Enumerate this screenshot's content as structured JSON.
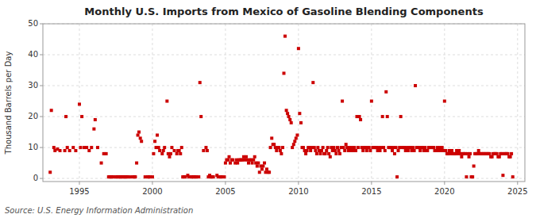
{
  "chart_data": {
    "type": "scatter",
    "title": "Monthly U.S. Imports from Mexico of Gasoline Blending Components",
    "y_label": "Thousand Barrels per Day",
    "annotations": [
      "Source: U.S. Energy Information Administration"
    ],
    "color": "#CC0000",
    "grid": true,
    "xlim": [
      1992.5,
      2025.5
    ],
    "ylim": [
      -1,
      50
    ],
    "xticks": [
      1995,
      2000,
      2005,
      2010,
      2015,
      2020,
      2025
    ],
    "yticks": [
      0,
      10,
      20,
      30,
      40,
      50
    ],
    "x": [
      1993,
      1993.08,
      1993.25,
      1993.33,
      1993.5,
      1993.67,
      1994,
      1994.08,
      1994.17,
      1994.33,
      1994.58,
      1994.75,
      1995,
      1995.08,
      1995.17,
      1995.33,
      1995.5,
      1995.67,
      1995.83,
      1996,
      1996.08,
      1996.25,
      1996.5,
      1996.67,
      1996.83,
      1997,
      1997.08,
      1997.17,
      1997.25,
      1997.33,
      1997.5,
      1997.58,
      1997.67,
      1997.75,
      1997.83,
      1997.92,
      1998,
      1998.08,
      1998.17,
      1998.25,
      1998.33,
      1998.5,
      1998.67,
      1998.75,
      1998.83,
      1998.92,
      1999,
      1999.08,
      1999.17,
      1999.25,
      1999.5,
      1999.67,
      1999.75,
      1999.83,
      2000,
      2000.08,
      2000.17,
      2000.25,
      2000.33,
      2000.42,
      2000.5,
      2000.67,
      2000.75,
      2000.83,
      2001,
      2001.08,
      2001.17,
      2001.25,
      2001.33,
      2001.5,
      2001.67,
      2001.75,
      2001.83,
      2001.92,
      2002,
      2002.08,
      2002.17,
      2002.25,
      2002.42,
      2002.5,
      2002.67,
      2002.75,
      2002.83,
      2002.92,
      2003,
      2003.17,
      2003.25,
      2003.33,
      2003.5,
      2003.67,
      2003.75,
      2003.83,
      2003.92,
      2004,
      2004.08,
      2004.17,
      2004.42,
      2004.5,
      2004.67,
      2004.75,
      2004.92,
      2005,
      2005.08,
      2005.17,
      2005.25,
      2005.33,
      2005.42,
      2005.5,
      2005.67,
      2005.75,
      2005.83,
      2005.92,
      2006,
      2006.08,
      2006.17,
      2006.25,
      2006.33,
      2006.42,
      2006.5,
      2006.58,
      2006.67,
      2006.75,
      2006.83,
      2006.92,
      2007,
      2007.08,
      2007.17,
      2007.25,
      2007.33,
      2007.42,
      2007.5,
      2007.58,
      2007.67,
      2007.75,
      2007.83,
      2007.92,
      2008,
      2008.08,
      2008.17,
      2008.25,
      2008.33,
      2008.42,
      2008.5,
      2008.58,
      2008.67,
      2008.75,
      2008.83,
      2008.92,
      2009,
      2009.08,
      2009.17,
      2009.25,
      2009.33,
      2009.42,
      2009.5,
      2009.58,
      2009.67,
      2009.75,
      2009.83,
      2009.92,
      2010,
      2010.08,
      2010.17,
      2010.25,
      2010.33,
      2010.42,
      2010.5,
      2010.58,
      2010.67,
      2010.75,
      2010.83,
      2010.92,
      2011,
      2011.08,
      2011.17,
      2011.25,
      2011.33,
      2011.42,
      2011.5,
      2011.58,
      2011.67,
      2011.75,
      2011.83,
      2011.92,
      2012,
      2012.08,
      2012.17,
      2012.25,
      2012.33,
      2012.42,
      2012.5,
      2012.58,
      2012.67,
      2012.75,
      2012.83,
      2012.92,
      2013,
      2013.08,
      2013.17,
      2013.25,
      2013.33,
      2013.42,
      2013.5,
      2013.58,
      2013.67,
      2013.75,
      2013.83,
      2013.92,
      2014,
      2014.08,
      2014.17,
      2014.25,
      2014.33,
      2014.42,
      2014.5,
      2014.58,
      2014.67,
      2014.75,
      2014.83,
      2014.92,
      2015,
      2015.08,
      2015.17,
      2015.25,
      2015.33,
      2015.42,
      2015.5,
      2015.58,
      2015.67,
      2015.75,
      2015.83,
      2015.92,
      2016,
      2016.08,
      2016.17,
      2016.25,
      2016.33,
      2016.42,
      2016.5,
      2016.58,
      2016.67,
      2016.75,
      2016.83,
      2016.92,
      2017,
      2017.08,
      2017.17,
      2017.25,
      2017.33,
      2017.42,
      2017.5,
      2017.58,
      2017.67,
      2017.75,
      2017.83,
      2017.92,
      2018,
      2018.08,
      2018.17,
      2018.25,
      2018.33,
      2018.42,
      2018.5,
      2018.58,
      2018.67,
      2018.75,
      2018.83,
      2018.92,
      2019,
      2019.08,
      2019.17,
      2019.25,
      2019.33,
      2019.42,
      2019.5,
      2019.58,
      2019.67,
      2019.75,
      2019.83,
      2019.92,
      2020,
      2020.08,
      2020.17,
      2020.25,
      2020.33,
      2020.42,
      2020.5,
      2020.58,
      2020.67,
      2020.75,
      2020.83,
      2020.92,
      2021,
      2021.08,
      2021.17,
      2021.25,
      2021.33,
      2021.42,
      2021.5,
      2021.58,
      2021.67,
      2021.75,
      2021.83,
      2021.92,
      2022,
      2022.08,
      2022.17,
      2022.25,
      2022.33,
      2022.42,
      2022.5,
      2022.58,
      2022.67,
      2022.75,
      2022.83,
      2022.92,
      2023,
      2023.08,
      2023.17,
      2023.25,
      2023.33,
      2023.42,
      2023.5,
      2023.58,
      2023.67,
      2023.75,
      2023.83,
      2023.92,
      2024,
      2024.08,
      2024.17,
      2024.25,
      2024.33,
      2024.42,
      2024.5,
      2024.58,
      2024.67
    ],
    "values": [
      2,
      22,
      10,
      9,
      9.5,
      9,
      9,
      20,
      10,
      9,
      10,
      9,
      24,
      10,
      20,
      10,
      10,
      9,
      10,
      16,
      19,
      10,
      5,
      8,
      8,
      0.5,
      0.5,
      0.5,
      0.5,
      0.5,
      0.5,
      0.5,
      0.5,
      0.5,
      0.5,
      0.5,
      0.5,
      0.5,
      0.5,
      0.5,
      0.5,
      0.5,
      0.5,
      0.5,
      0.5,
      5,
      14,
      15,
      13,
      12,
      0.5,
      0.5,
      0.5,
      0.5,
      0.5,
      8,
      12,
      10,
      14,
      10,
      9,
      8,
      9,
      10,
      25,
      8,
      7,
      8,
      10,
      9,
      8,
      9,
      9,
      8,
      10,
      0.5,
      0.5,
      0.5,
      1,
      0.5,
      0.5,
      0.5,
      0.5,
      0.5,
      0.5,
      0.5,
      31,
      20,
      9,
      10,
      9,
      0.5,
      1,
      0.5,
      0.5,
      0.5,
      1,
      0.5,
      0.5,
      0.5,
      0.5,
      5,
      6,
      6,
      7,
      5,
      6,
      6,
      5,
      6,
      5,
      6,
      6,
      6,
      6,
      7,
      6,
      7,
      6,
      5,
      6,
      6,
      5,
      6,
      7,
      5,
      4,
      5,
      2,
      4,
      3,
      4,
      5,
      2,
      3,
      2,
      2,
      10,
      13,
      11,
      11,
      10,
      9,
      10,
      10,
      9,
      8,
      10,
      34,
      46,
      22,
      21,
      20,
      19,
      18,
      10,
      11,
      12,
      13,
      14,
      42,
      21,
      18,
      10,
      10,
      9,
      8,
      9,
      10,
      10,
      9,
      10,
      31,
      10,
      9,
      8,
      10,
      9,
      8,
      9,
      10,
      8,
      8,
      9,
      10,
      8,
      7,
      10,
      9,
      10,
      9,
      8,
      10,
      9,
      8,
      10,
      25,
      10,
      9,
      11,
      10,
      9,
      10,
      9,
      10,
      9,
      10,
      9,
      20,
      10,
      20,
      19,
      10,
      9,
      10,
      10,
      9,
      10,
      10,
      9,
      25,
      10,
      10,
      10,
      10,
      9,
      10,
      9,
      10,
      20,
      10,
      9,
      28,
      20,
      10,
      10,
      10,
      9,
      10,
      8,
      10,
      0.5,
      9,
      10,
      20,
      10,
      10,
      10,
      9,
      10,
      9,
      10,
      10,
      9,
      10,
      9,
      30,
      10,
      10,
      10,
      9,
      10,
      10,
      9,
      10,
      9,
      9,
      10,
      10,
      10,
      10,
      10,
      9,
      9,
      10,
      9,
      10,
      9,
      10,
      9,
      25,
      9,
      8,
      8,
      9,
      8,
      9,
      8,
      8,
      8,
      9,
      8,
      9,
      8,
      7,
      8,
      8,
      8,
      0.5,
      8,
      7,
      8,
      0.5,
      0.5,
      4,
      8,
      8,
      8,
      9,
      8,
      8,
      8,
      8,
      8,
      8,
      8,
      8,
      8,
      7,
      7,
      8,
      8,
      8,
      8,
      7,
      7,
      8,
      8,
      1,
      8,
      8,
      8,
      8,
      7,
      7,
      8,
      0.5
    ]
  }
}
